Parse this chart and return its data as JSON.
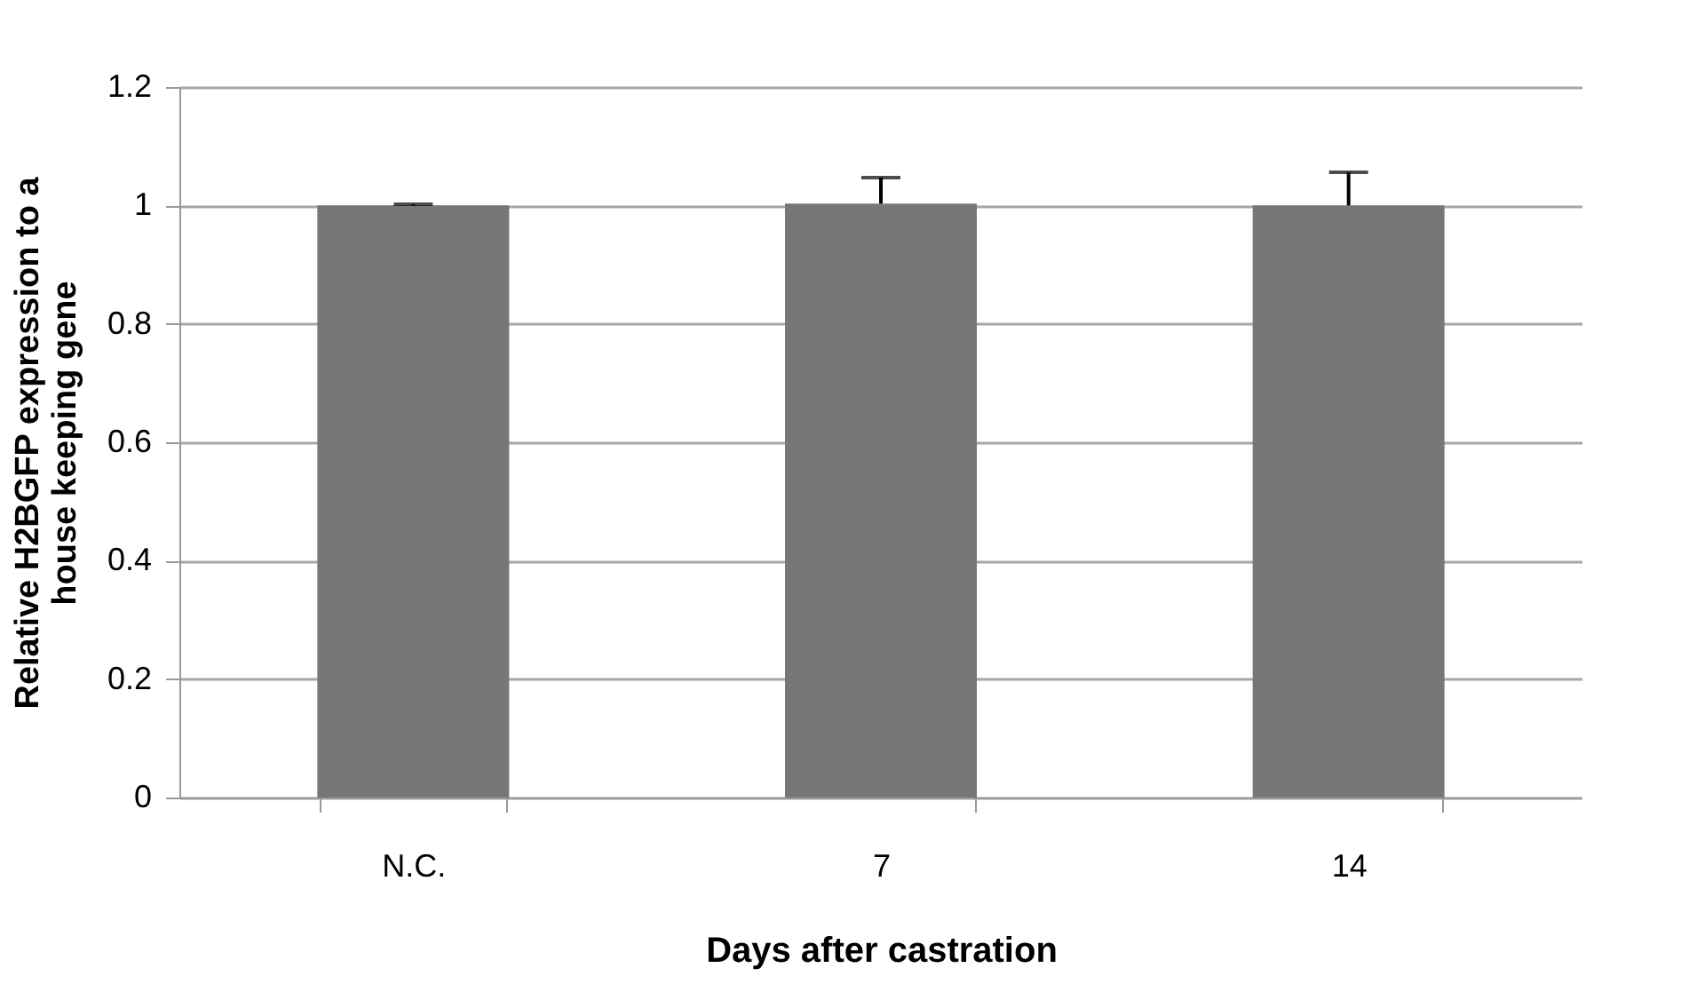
{
  "chart_data": {
    "type": "bar",
    "xlabel": "Days after castration",
    "ylabel": "Relative H2BGFP expression to a house keeping gene",
    "categories": [
      "N.C.",
      "7",
      "14"
    ],
    "values": [
      1.0,
      1.003,
      1.0
    ],
    "errors": [
      [
        1.0,
        1.002
      ],
      [
        1.003,
        1.047
      ],
      [
        1.0,
        1.056
      ]
    ],
    "color": "#777777",
    "ylim": [
      0,
      1.2
    ],
    "yticks": [
      0,
      0.2,
      0.4,
      0.6,
      0.8,
      1,
      1.2
    ],
    "grid": "y"
  }
}
